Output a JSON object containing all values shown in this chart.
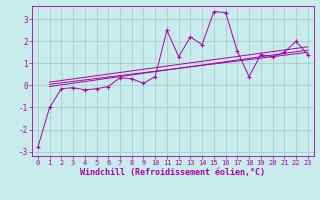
{
  "xlabel": "Windchill (Refroidissement éolien,°C)",
  "bg_color": "#c8ecec",
  "grid_color": "#a0c8c8",
  "line_color": "#aa00aa",
  "text_color": "#aa00aa",
  "xlim": [
    -0.5,
    23.5
  ],
  "ylim": [
    -3.2,
    3.6
  ],
  "yticks": [
    -3,
    -2,
    -1,
    0,
    1,
    2,
    3
  ],
  "xticks": [
    0,
    1,
    2,
    3,
    4,
    5,
    6,
    7,
    8,
    9,
    10,
    11,
    12,
    13,
    14,
    15,
    16,
    17,
    18,
    19,
    20,
    21,
    22,
    23
  ],
  "zigzag_x": [
    0,
    1,
    2,
    3,
    4,
    5,
    6,
    7,
    8,
    9,
    10,
    11,
    12,
    13,
    14,
    15,
    16,
    17,
    18,
    19,
    20,
    21,
    22,
    23
  ],
  "zigzag_y": [
    -2.8,
    -1.0,
    -0.15,
    -0.1,
    -0.2,
    -0.15,
    -0.05,
    0.35,
    0.3,
    0.1,
    0.4,
    2.5,
    1.3,
    2.2,
    1.85,
    3.35,
    3.3,
    1.55,
    0.4,
    1.4,
    1.3,
    1.5,
    2.0,
    1.4
  ],
  "line1_x": [
    1,
    23
  ],
  "line1_y": [
    0.15,
    1.75
  ],
  "line2_x": [
    1,
    23
  ],
  "line2_y": [
    -0.05,
    1.6
  ],
  "line3_x": [
    1,
    23
  ],
  "line3_y": [
    0.05,
    1.5
  ]
}
